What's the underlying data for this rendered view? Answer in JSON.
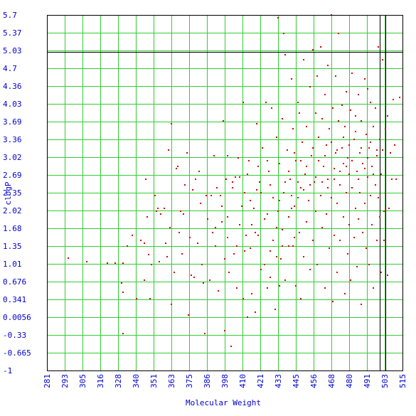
{
  "chart_data": {
    "type": "scatter",
    "xlabel": "Molecular Weight",
    "ylabel": "clogP",
    "xlim": [
      281,
      515
    ],
    "ylim": [
      -1,
      5.7
    ],
    "x_ticks": [
      "281",
      "293",
      "305",
      "316",
      "328",
      "340",
      "351",
      "363",
      "375",
      "386",
      "398",
      "410",
      "421",
      "433",
      "445",
      "456",
      "468",
      "480",
      "491",
      "503",
      "515"
    ],
    "y_ticks": [
      "5.7",
      "5.37",
      "5.03",
      "4.7",
      "4.36",
      "4.03",
      "3.69",
      "3.36",
      "3.02",
      "2.69",
      "2.35",
      "2.02",
      "1.68",
      "1.35",
      "1.01",
      "0.676",
      "0.341",
      "0.0056",
      "-0.33",
      "-0.665",
      "-1"
    ],
    "grid": true,
    "reference_lines": {
      "x": [
        500,
        504
      ],
      "y": [
        5.0
      ]
    },
    "colors": {
      "points": "#dd0000",
      "grid": "#33cc33",
      "labels": "#0000cc",
      "reference": "#000000"
    },
    "series": [
      {
        "points": [
          [
            295,
            1.12
          ],
          [
            307,
            1.05
          ],
          [
            321,
            1.03
          ],
          [
            326,
            1.02
          ],
          [
            330,
            0.65
          ],
          [
            331,
            0.47
          ],
          [
            331,
            -0.3
          ],
          [
            331,
            1.02
          ],
          [
            334,
            1.35
          ],
          [
            337,
            1.55
          ],
          [
            340,
            0.35
          ],
          [
            343,
            1.45
          ],
          [
            345,
            1.4
          ],
          [
            345,
            0.7
          ],
          [
            346,
            2.6
          ],
          [
            347,
            1.9
          ],
          [
            348,
            1.18
          ],
          [
            349,
            0.35
          ],
          [
            350,
            1.0
          ],
          [
            352,
            2.3
          ],
          [
            353,
            2.0
          ],
          [
            354,
            2.05
          ],
          [
            355,
            1.05
          ],
          [
            356,
            1.95
          ],
          [
            358,
            2.05
          ],
          [
            359,
            1.4
          ],
          [
            360,
            1.15
          ],
          [
            361,
            3.15
          ],
          [
            362,
            1.7
          ],
          [
            363,
            3.65
          ],
          [
            363,
            0.25
          ],
          [
            365,
            0.85
          ],
          [
            366,
            2.8
          ],
          [
            367,
            2.85
          ],
          [
            368,
            1.6
          ],
          [
            369,
            2.0
          ],
          [
            370,
            1.2
          ],
          [
            371,
            1.95
          ],
          [
            372,
            2.5
          ],
          [
            373,
            3.1
          ],
          [
            374,
            0.05
          ],
          [
            375,
            1.5
          ],
          [
            376,
            0.8
          ],
          [
            377,
            2.4
          ],
          [
            378,
            0.75
          ],
          [
            379,
            2.6
          ],
          [
            380,
            1.4
          ],
          [
            381,
            2.75
          ],
          [
            382,
            2.15
          ],
          [
            383,
            1.0
          ],
          [
            384,
            0.65
          ],
          [
            385,
            -0.3
          ],
          [
            386,
            2.3
          ],
          [
            387,
            1.85
          ],
          [
            388,
            0.7
          ],
          [
            389,
            2.3
          ],
          [
            390,
            1.6
          ],
          [
            391,
            3.05
          ],
          [
            392,
            1.35
          ],
          [
            393,
            2.45
          ],
          [
            394,
            0.5
          ],
          [
            395,
            2.3
          ],
          [
            396,
            1.8
          ],
          [
            397,
            3.7
          ],
          [
            398,
            1.1
          ],
          [
            398,
            -0.25
          ],
          [
            399,
            2.6
          ],
          [
            400,
            3.05
          ],
          [
            400,
            1.5
          ],
          [
            401,
            0.85
          ],
          [
            402,
            -0.55
          ],
          [
            403,
            2.45
          ],
          [
            404,
            1.2
          ],
          [
            405,
            2.65
          ],
          [
            406,
            0.55
          ],
          [
            407,
            3.0
          ],
          [
            408,
            1.75
          ],
          [
            409,
            2.1
          ],
          [
            410,
            4.05
          ],
          [
            410,
            0.35
          ],
          [
            411,
            2.35
          ],
          [
            412,
            1.55
          ],
          [
            413,
            0.0
          ],
          [
            414,
            2.95
          ],
          [
            415,
            1.3
          ],
          [
            416,
            0.45
          ],
          [
            417,
            2.05
          ],
          [
            418,
            0.1
          ],
          [
            419,
            3.65
          ],
          [
            420,
            1.55
          ],
          [
            421,
            2.55
          ],
          [
            422,
            0.9
          ],
          [
            423,
            3.2
          ],
          [
            424,
            1.85
          ],
          [
            425,
            4.05
          ],
          [
            426,
            0.55
          ],
          [
            427,
            2.75
          ],
          [
            428,
            1.25
          ],
          [
            429,
            3.95
          ],
          [
            430,
            2.25
          ],
          [
            431,
            0.15
          ],
          [
            432,
            1.7
          ],
          [
            432,
            3.4
          ],
          [
            433,
            5.65
          ],
          [
            433,
            2.0
          ],
          [
            434,
            2.9
          ],
          [
            435,
            1.1
          ],
          [
            436,
            3.75
          ],
          [
            437,
            2.35
          ],
          [
            437,
            5.35
          ],
          [
            438,
            0.7
          ],
          [
            438,
            4.95
          ],
          [
            439,
            3.15
          ],
          [
            440,
            1.9
          ],
          [
            441,
            2.6
          ],
          [
            442,
            4.5
          ],
          [
            443,
            1.35
          ],
          [
            443,
            3.55
          ],
          [
            444,
            2.1
          ],
          [
            445,
            0.6
          ],
          [
            445,
            2.95
          ],
          [
            446,
            4.05
          ],
          [
            447,
            1.6
          ],
          [
            447,
            3.85
          ],
          [
            448,
            2.45
          ],
          [
            448,
            0.35
          ],
          [
            449,
            3.3
          ],
          [
            450,
            1.15
          ],
          [
            450,
            4.85
          ],
          [
            451,
            2.7
          ],
          [
            452,
            1.8
          ],
          [
            452,
            3.6
          ],
          [
            453,
            2.2
          ],
          [
            454,
            0.9
          ],
          [
            454,
            4.35
          ],
          [
            455,
            3.05
          ],
          [
            456,
            1.45
          ],
          [
            456,
            5.05
          ],
          [
            457,
            2.55
          ],
          [
            458,
            3.85
          ],
          [
            458,
            2.0
          ],
          [
            459,
            1.0
          ],
          [
            459,
            4.55
          ],
          [
            460,
            3.4
          ],
          [
            461,
            2.3
          ],
          [
            461,
            5.1
          ],
          [
            462,
            1.7
          ],
          [
            462,
            3.75
          ],
          [
            463,
            2.85
          ],
          [
            464,
            0.55
          ],
          [
            464,
            4.2
          ],
          [
            465,
            3.25
          ],
          [
            465,
            1.95
          ],
          [
            466,
            2.6
          ],
          [
            466,
            4.75
          ],
          [
            467,
            1.3
          ],
          [
            467,
            3.55
          ],
          [
            468,
            5.7
          ],
          [
            468,
            2.25
          ],
          [
            469,
            0.3
          ],
          [
            469,
            3.95
          ],
          [
            470,
            2.8
          ],
          [
            470,
            1.55
          ],
          [
            471,
            4.55
          ],
          [
            471,
            3.1
          ],
          [
            472,
            2.15
          ],
          [
            472,
            0.85
          ],
          [
            473,
            3.7
          ],
          [
            473,
            5.35
          ],
          [
            474,
            2.5
          ],
          [
            474,
            1.45
          ],
          [
            475,
            4.0
          ],
          [
            475,
            3.2
          ],
          [
            476,
            1.9
          ],
          [
            476,
            2.9
          ],
          [
            477,
            0.45
          ],
          [
            477,
            3.6
          ],
          [
            478,
            2.35
          ],
          [
            478,
            4.25
          ],
          [
            479,
            1.2
          ],
          [
            479,
            3.0
          ],
          [
            480,
            2.7
          ],
          [
            480,
            1.75
          ],
          [
            481,
            3.9
          ],
          [
            481,
            0.7
          ],
          [
            482,
            2.45
          ],
          [
            482,
            4.6
          ],
          [
            483,
            3.35
          ],
          [
            483,
            1.5
          ],
          [
            484,
            2.05
          ],
          [
            484,
            3.8
          ],
          [
            485,
            0.95
          ],
          [
            485,
            2.75
          ],
          [
            486,
            4.2
          ],
          [
            486,
            1.85
          ],
          [
            487,
            3.1
          ],
          [
            487,
            2.35
          ],
          [
            488,
            0.25
          ],
          [
            488,
            3.7
          ],
          [
            489,
            1.6
          ],
          [
            489,
            2.9
          ],
          [
            490,
            4.5
          ],
          [
            490,
            2.15
          ],
          [
            491,
            1.3
          ],
          [
            491,
            3.45
          ],
          [
            492,
            2.65
          ],
          [
            492,
            4.3
          ],
          [
            493,
            1.0
          ],
          [
            493,
            3.2
          ],
          [
            494,
            2.3
          ],
          [
            494,
            4.05
          ],
          [
            495,
            1.75
          ],
          [
            495,
            2.85
          ],
          [
            496,
            3.6
          ],
          [
            496,
            0.55
          ],
          [
            497,
            2.5
          ],
          [
            497,
            3.95
          ],
          [
            498,
            1.45
          ],
          [
            498,
            3.05
          ],
          [
            499,
            2.25
          ],
          [
            499,
            5.1
          ],
          [
            500,
            1.9
          ],
          [
            500,
            3.35
          ],
          [
            501,
            2.7
          ],
          [
            501,
            0.85
          ],
          [
            502,
            4.85
          ],
          [
            502,
            3.15
          ],
          [
            503,
            2.0
          ],
          [
            503,
            1.45
          ],
          [
            504,
            3.55
          ],
          [
            504,
            2.35
          ],
          [
            505,
            0.8
          ],
          [
            505,
            3.8
          ],
          [
            506,
            2.05
          ],
          [
            507,
            3.1
          ],
          [
            508,
            2.6
          ],
          [
            509,
            4.1
          ],
          [
            510,
            3.25
          ],
          [
            511,
            2.6
          ],
          [
            513,
            4.15
          ],
          [
            440,
            2.75
          ],
          [
            442,
            2.3
          ],
          [
            444,
            3.1
          ],
          [
            446,
            2.55
          ],
          [
            448,
            2.95
          ],
          [
            450,
            2.4
          ],
          [
            452,
            2.85
          ],
          [
            454,
            2.5
          ],
          [
            456,
            3.2
          ],
          [
            458,
            2.65
          ],
          [
            460,
            2.95
          ],
          [
            462,
            2.55
          ],
          [
            464,
            3.05
          ],
          [
            466,
            2.45
          ],
          [
            468,
            3.3
          ],
          [
            470,
            2.6
          ],
          [
            472,
            3.15
          ],
          [
            474,
            2.75
          ],
          [
            476,
            3.4
          ],
          [
            478,
            2.85
          ],
          [
            480,
            3.25
          ],
          [
            482,
            2.95
          ],
          [
            484,
            3.5
          ],
          [
            486,
            2.6
          ],
          [
            488,
            3.2
          ],
          [
            490,
            2.8
          ],
          [
            492,
            3.0
          ],
          [
            494,
            3.3
          ],
          [
            496,
            2.7
          ],
          [
            498,
            3.15
          ],
          [
            426,
            1.95
          ],
          [
            428,
            2.5
          ],
          [
            430,
            1.45
          ],
          [
            434,
            2.2
          ],
          [
            436,
            1.65
          ],
          [
            438,
            2.55
          ],
          [
            440,
            1.35
          ],
          [
            442,
            2.05
          ],
          [
            444,
            1.5
          ],
          [
            446,
            2.25
          ],
          [
            415,
            2.2
          ],
          [
            418,
            1.6
          ],
          [
            420,
            2.85
          ],
          [
            422,
            2.35
          ],
          [
            424,
            1.0
          ],
          [
            426,
            2.95
          ],
          [
            428,
            0.75
          ],
          [
            432,
            1.15
          ],
          [
            434,
            0.6
          ],
          [
            436,
            1.35
          ],
          [
            392,
            1.7
          ],
          [
            396,
            2.1
          ],
          [
            400,
            1.9
          ],
          [
            403,
            2.55
          ],
          [
            406,
            1.35
          ],
          [
            408,
            2.65
          ],
          [
            411,
            1.25
          ],
          [
            413,
            2.7
          ],
          [
            416,
            1.75
          ],
          [
            419,
            2.4
          ]
        ]
      }
    ]
  }
}
